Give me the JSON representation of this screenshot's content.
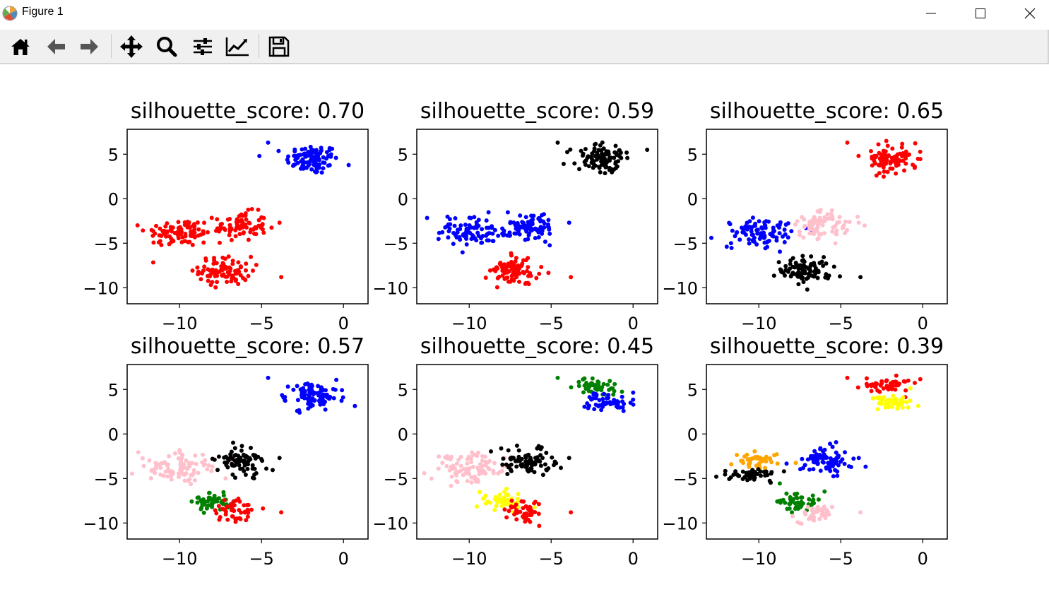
{
  "window": {
    "title": "Figure 1",
    "controls": [
      "minimize",
      "maximize",
      "close"
    ]
  },
  "toolbar": {
    "buttons": [
      {
        "icon": "home-icon",
        "name": "home"
      },
      {
        "icon": "arrow-left-icon",
        "name": "back"
      },
      {
        "icon": "arrow-right-icon",
        "name": "forward"
      },
      {
        "icon": "move-icon",
        "name": "pan"
      },
      {
        "icon": "search-icon",
        "name": "zoom"
      },
      {
        "icon": "sliders-icon",
        "name": "configure-subplots"
      },
      {
        "icon": "chart-line-icon",
        "name": "edit-axes"
      },
      {
        "icon": "save-icon",
        "name": "save"
      }
    ]
  },
  "chart_data": [
    {
      "type": "scatter",
      "title": "silhouette_score: 0.70",
      "xlim": [
        -13.2,
        1.5
      ],
      "ylim": [
        -11.8,
        7.8
      ],
      "xticks": [
        -10,
        -5,
        0
      ],
      "xtick_labels": [
        "−10",
        "−5",
        "0"
      ],
      "yticks": [
        5,
        0,
        -5,
        -10
      ],
      "ytick_labels": [
        "5",
        "0",
        "−5",
        "−10"
      ],
      "grid": false,
      "clusters": [
        {
          "color": "#0000ff",
          "center": [
            -1.9,
            4.4
          ],
          "spread": [
            1.0,
            1.05
          ],
          "n": 100
        },
        {
          "color": "#ff0000",
          "center": [
            -10.0,
            -3.8
          ],
          "spread": [
            1.3,
            1.0
          ],
          "n": 90
        },
        {
          "color": "#ff0000",
          "center": [
            -6.3,
            -3.1
          ],
          "spread": [
            1.0,
            1.0
          ],
          "n": 80
        },
        {
          "color": "#ff0000",
          "center": [
            -7.2,
            -8.1
          ],
          "spread": [
            1.0,
            1.0
          ],
          "n": 90
        }
      ],
      "outliers": [
        {
          "color": "#0000ff",
          "x": -4.6,
          "y": 6.3
        },
        {
          "color": "#ff0000",
          "x": -3.8,
          "y": -8.8
        },
        {
          "color": "#ff0000",
          "x": -3.9,
          "y": -2.7
        }
      ]
    },
    {
      "type": "scatter",
      "title": "silhouette_score: 0.59",
      "xlim": [
        -13.2,
        1.5
      ],
      "ylim": [
        -11.8,
        7.8
      ],
      "xticks": [
        -10,
        -5,
        0
      ],
      "xtick_labels": [
        "−10",
        "−5",
        "0"
      ],
      "yticks": [
        5,
        0,
        -5,
        -10
      ],
      "ytick_labels": [
        "5",
        "0",
        "−5",
        "−10"
      ],
      "grid": false,
      "clusters": [
        {
          "color": "#000000",
          "center": [
            -1.9,
            4.4
          ],
          "spread": [
            1.0,
            1.05
          ],
          "n": 100
        },
        {
          "color": "#0000ff",
          "center": [
            -10.0,
            -3.8
          ],
          "spread": [
            1.3,
            1.0
          ],
          "n": 90
        },
        {
          "color": "#0000ff",
          "center": [
            -6.3,
            -3.1
          ],
          "spread": [
            1.0,
            1.0
          ],
          "n": 80
        },
        {
          "color": "#ff0000",
          "center": [
            -7.2,
            -8.1
          ],
          "spread": [
            1.0,
            1.0
          ],
          "n": 90
        }
      ],
      "outliers": [
        {
          "color": "#000000",
          "x": -4.6,
          "y": 6.3
        },
        {
          "color": "#ff0000",
          "x": -3.8,
          "y": -8.8
        },
        {
          "color": "#0000ff",
          "x": -3.9,
          "y": -2.7
        }
      ]
    },
    {
      "type": "scatter",
      "title": "silhouette_score: 0.65",
      "xlim": [
        -13.2,
        1.5
      ],
      "ylim": [
        -11.8,
        7.8
      ],
      "xticks": [
        -10,
        -5,
        0
      ],
      "xtick_labels": [
        "−10",
        "−5",
        "0"
      ],
      "yticks": [
        5,
        0,
        -5,
        -10
      ],
      "ytick_labels": [
        "5",
        "0",
        "−5",
        "−10"
      ],
      "grid": false,
      "clusters": [
        {
          "color": "#ff0000",
          "center": [
            -1.9,
            4.4
          ],
          "spread": [
            1.0,
            1.05
          ],
          "n": 100
        },
        {
          "color": "#0000ff",
          "center": [
            -10.0,
            -3.8
          ],
          "spread": [
            1.3,
            1.0
          ],
          "n": 90
        },
        {
          "color": "#ffc0cb",
          "center": [
            -6.3,
            -3.1
          ],
          "spread": [
            1.0,
            1.0
          ],
          "n": 80
        },
        {
          "color": "#000000",
          "center": [
            -7.2,
            -8.1
          ],
          "spread": [
            1.0,
            1.0
          ],
          "n": 90
        }
      ],
      "outliers": [
        {
          "color": "#ff0000",
          "x": -4.6,
          "y": 6.3
        },
        {
          "color": "#000000",
          "x": -3.8,
          "y": -8.8
        },
        {
          "color": "#ffc0cb",
          "x": -3.9,
          "y": -2.7
        }
      ]
    },
    {
      "type": "scatter",
      "title": "silhouette_score: 0.57",
      "xlim": [
        -13.2,
        1.5
      ],
      "ylim": [
        -11.8,
        7.8
      ],
      "xticks": [
        -10,
        -5,
        0
      ],
      "xtick_labels": [
        "−10",
        "−5",
        "0"
      ],
      "yticks": [
        5,
        0,
        -5,
        -10
      ],
      "ytick_labels": [
        "5",
        "0",
        "−5",
        "−10"
      ],
      "grid": false,
      "clusters": [
        {
          "color": "#0000ff",
          "center": [
            -1.9,
            4.4
          ],
          "spread": [
            1.0,
            1.05
          ],
          "n": 100
        },
        {
          "color": "#ffc0cb",
          "center": [
            -10.0,
            -3.8
          ],
          "spread": [
            1.3,
            1.0
          ],
          "n": 90
        },
        {
          "color": "#000000",
          "center": [
            -6.3,
            -3.1
          ],
          "spread": [
            1.0,
            1.0
          ],
          "n": 80
        },
        {
          "color": "#008000",
          "center": [
            -8.0,
            -7.6
          ],
          "spread": [
            0.7,
            0.7
          ],
          "n": 50
        },
        {
          "color": "#ff0000",
          "center": [
            -6.6,
            -8.7
          ],
          "spread": [
            0.7,
            0.8
          ],
          "n": 45
        }
      ],
      "outliers": [
        {
          "color": "#0000ff",
          "x": -4.6,
          "y": 6.3
        },
        {
          "color": "#ff0000",
          "x": -3.8,
          "y": -8.8
        },
        {
          "color": "#000000",
          "x": -3.9,
          "y": -2.7
        }
      ]
    },
    {
      "type": "scatter",
      "title": "silhouette_score: 0.45",
      "xlim": [
        -13.2,
        1.5
      ],
      "ylim": [
        -11.8,
        7.8
      ],
      "xticks": [
        -10,
        -5,
        0
      ],
      "xtick_labels": [
        "−10",
        "−5",
        "0"
      ],
      "yticks": [
        5,
        0,
        -5,
        -10
      ],
      "ytick_labels": [
        "5",
        "0",
        "−5",
        "−10"
      ],
      "grid": false,
      "clusters": [
        {
          "color": "#008000",
          "center": [
            -2.2,
            5.4
          ],
          "spread": [
            0.8,
            0.5
          ],
          "n": 45
        },
        {
          "color": "#0000ff",
          "center": [
            -1.5,
            3.6
          ],
          "spread": [
            0.9,
            0.6
          ],
          "n": 55
        },
        {
          "color": "#ffc0cb",
          "center": [
            -10.0,
            -3.8
          ],
          "spread": [
            1.3,
            1.0
          ],
          "n": 90
        },
        {
          "color": "#000000",
          "center": [
            -6.3,
            -3.1
          ],
          "spread": [
            1.0,
            1.0
          ],
          "n": 80
        },
        {
          "color": "#ffff00",
          "center": [
            -8.0,
            -7.6
          ],
          "spread": [
            0.8,
            0.7
          ],
          "n": 50
        },
        {
          "color": "#ff0000",
          "center": [
            -6.6,
            -8.7
          ],
          "spread": [
            0.7,
            0.8
          ],
          "n": 45
        }
      ],
      "outliers": [
        {
          "color": "#008000",
          "x": -4.6,
          "y": 6.3
        },
        {
          "color": "#ff0000",
          "x": -3.8,
          "y": -8.8
        },
        {
          "color": "#000000",
          "x": -3.9,
          "y": -2.7
        }
      ]
    },
    {
      "type": "scatter",
      "title": "silhouette_score: 0.39",
      "xlim": [
        -13.2,
        1.5
      ],
      "ylim": [
        -11.8,
        7.8
      ],
      "xticks": [
        -10,
        -5,
        0
      ],
      "xtick_labels": [
        "−10",
        "−5",
        "0"
      ],
      "yticks": [
        5,
        0,
        -5,
        -10
      ],
      "ytick_labels": [
        "5",
        "0",
        "−5",
        "−10"
      ],
      "grid": false,
      "clusters": [
        {
          "color": "#ff0000",
          "center": [
            -1.9,
            5.5
          ],
          "spread": [
            1.0,
            0.5
          ],
          "n": 50
        },
        {
          "color": "#ffff00",
          "center": [
            -1.7,
            3.6
          ],
          "spread": [
            0.9,
            0.6
          ],
          "n": 50
        },
        {
          "color": "#ffa500",
          "center": [
            -10.0,
            -3.0
          ],
          "spread": [
            1.2,
            0.5
          ],
          "n": 45
        },
        {
          "color": "#000000",
          "center": [
            -10.4,
            -4.6
          ],
          "spread": [
            1.2,
            0.6
          ],
          "n": 45
        },
        {
          "color": "#0000ff",
          "center": [
            -6.0,
            -3.1
          ],
          "spread": [
            1.0,
            1.0
          ],
          "n": 80
        },
        {
          "color": "#008000",
          "center": [
            -7.7,
            -7.6
          ],
          "spread": [
            0.8,
            0.7
          ],
          "n": 50
        },
        {
          "color": "#ffc0cb",
          "center": [
            -6.5,
            -8.9
          ],
          "spread": [
            0.7,
            0.7
          ],
          "n": 40
        }
      ],
      "outliers": [
        {
          "color": "#ff0000",
          "x": -4.6,
          "y": 6.3
        },
        {
          "color": "#ffc0cb",
          "x": -3.8,
          "y": -8.8
        },
        {
          "color": "#0000ff",
          "x": -3.9,
          "y": -2.7
        }
      ]
    }
  ]
}
